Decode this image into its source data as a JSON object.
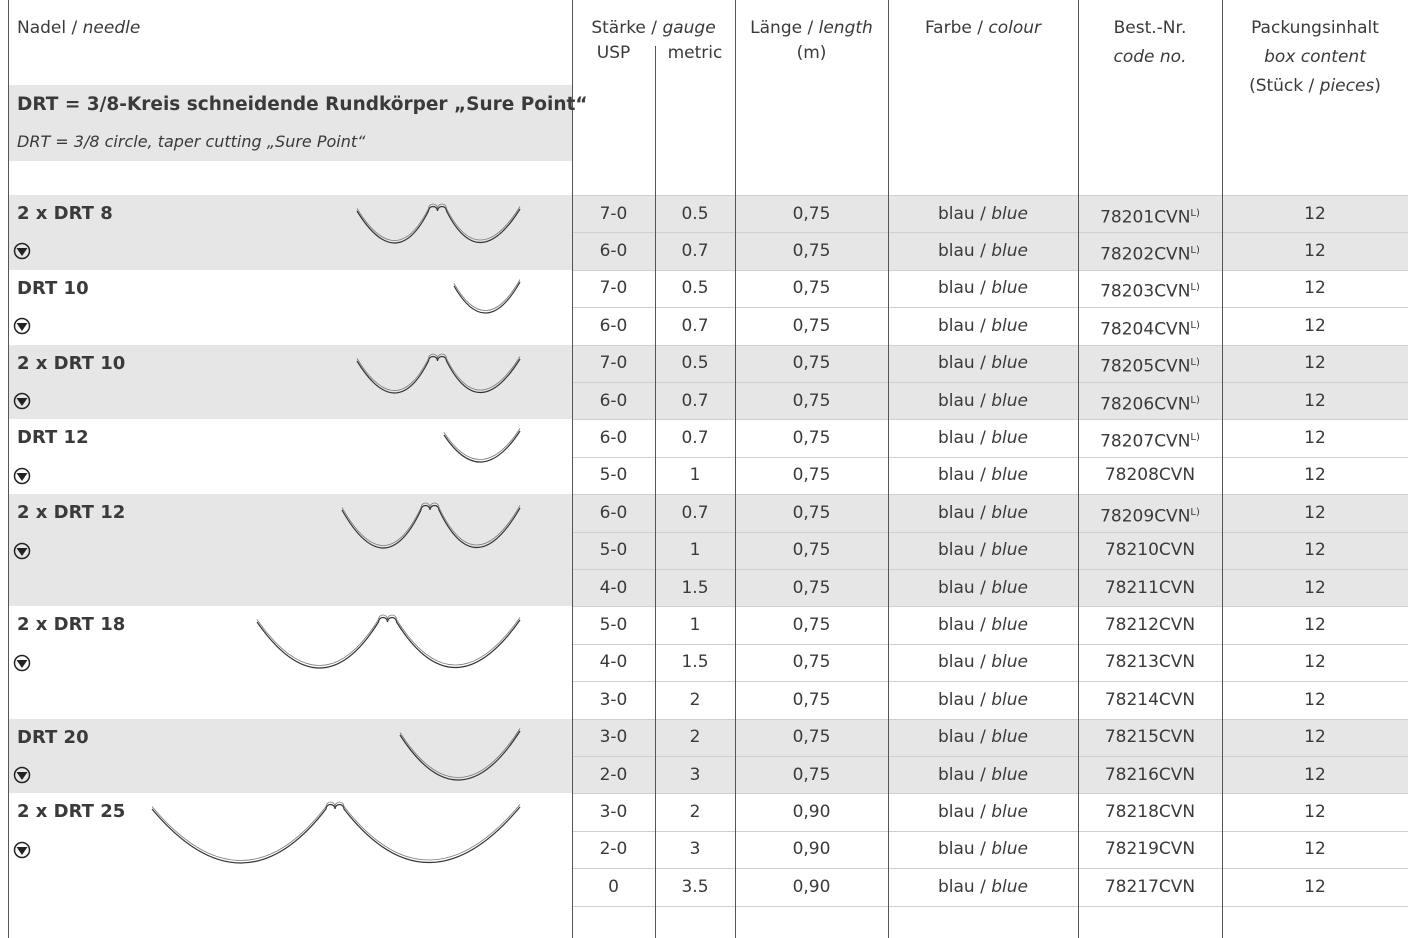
{
  "header": {
    "needle": {
      "de": "Nadel / ",
      "en": "needle"
    },
    "gauge": {
      "de": "Stärke / ",
      "en": "gauge",
      "usp": "USP",
      "metric": "metric"
    },
    "length": {
      "de": "Länge / ",
      "en": "length",
      "unit": "(m)"
    },
    "colour": {
      "de": "Farbe / ",
      "en": "colour"
    },
    "code": {
      "de": "Best.-Nr.",
      "en": "code no."
    },
    "box": {
      "de": "Packungsinhalt",
      "en": "box content",
      "unit_open": "(Stück / ",
      "unit_en": "pieces",
      "unit_close": ")"
    }
  },
  "section": {
    "title": "DRT = 3/8-Kreis schneidende Rundkörper „Sure Point“",
    "subtitle": "DRT = 3/8 circle, taper cutting „Sure Point“"
  },
  "groups": [
    {
      "name": "2 x DRT 8",
      "rows": [
        {
          "usp": "7-0",
          "metric": "0.5",
          "length": "0,75",
          "colour": {
            "de": "blau / ",
            "en": "blue"
          },
          "code": "78201CVN",
          "note": "L)",
          "box": "12"
        },
        {
          "usp": "6-0",
          "metric": "0.7",
          "length": "0,75",
          "colour": {
            "de": "blau / ",
            "en": "blue"
          },
          "code": "78202CVN",
          "note": "L)",
          "box": "12"
        }
      ]
    },
    {
      "name": "DRT 10",
      "rows": [
        {
          "usp": "7-0",
          "metric": "0.5",
          "length": "0,75",
          "colour": {
            "de": "blau / ",
            "en": "blue"
          },
          "code": "78203CVN",
          "note": "L)",
          "box": "12"
        },
        {
          "usp": "6-0",
          "metric": "0.7",
          "length": "0,75",
          "colour": {
            "de": "blau / ",
            "en": "blue"
          },
          "code": "78204CVN",
          "note": "L)",
          "box": "12"
        }
      ]
    },
    {
      "name": "2 x DRT 10",
      "rows": [
        {
          "usp": "7-0",
          "metric": "0.5",
          "length": "0,75",
          "colour": {
            "de": "blau / ",
            "en": "blue"
          },
          "code": "78205CVN",
          "note": "L)",
          "box": "12"
        },
        {
          "usp": "6-0",
          "metric": "0.7",
          "length": "0,75",
          "colour": {
            "de": "blau / ",
            "en": "blue"
          },
          "code": "78206CVN",
          "note": "L)",
          "box": "12"
        }
      ]
    },
    {
      "name": "DRT 12",
      "rows": [
        {
          "usp": "6-0",
          "metric": "0.7",
          "length": "0,75",
          "colour": {
            "de": "blau / ",
            "en": "blue"
          },
          "code": "78207CVN",
          "note": "L)",
          "box": "12"
        },
        {
          "usp": "5-0",
          "metric": "1",
          "length": "0,75",
          "colour": {
            "de": "blau / ",
            "en": "blue"
          },
          "code": "78208CVN",
          "box": "12"
        }
      ]
    },
    {
      "name": "2 x DRT 12",
      "rows": [
        {
          "usp": "6-0",
          "metric": "0.7",
          "length": "0,75",
          "colour": {
            "de": "blau / ",
            "en": "blue"
          },
          "code": "78209CVN",
          "note": "L)",
          "box": "12"
        },
        {
          "usp": "5-0",
          "metric": "1",
          "length": "0,75",
          "colour": {
            "de": "blau / ",
            "en": "blue"
          },
          "code": "78210CVN",
          "box": "12"
        },
        {
          "usp": "4-0",
          "metric": "1.5",
          "length": "0,75",
          "colour": {
            "de": "blau / ",
            "en": "blue"
          },
          "code": "78211CVN",
          "box": "12"
        }
      ]
    },
    {
      "name": "2 x DRT 18",
      "rows": [
        {
          "usp": "5-0",
          "metric": "1",
          "length": "0,75",
          "colour": {
            "de": "blau / ",
            "en": "blue"
          },
          "code": "78212CVN",
          "box": "12"
        },
        {
          "usp": "4-0",
          "metric": "1.5",
          "length": "0,75",
          "colour": {
            "de": "blau / ",
            "en": "blue"
          },
          "code": "78213CVN",
          "box": "12"
        },
        {
          "usp": "3-0",
          "metric": "2",
          "length": "0,75",
          "colour": {
            "de": "blau / ",
            "en": "blue"
          },
          "code": "78214CVN",
          "box": "12"
        }
      ]
    },
    {
      "name": "DRT 20",
      "rows": [
        {
          "usp": "3-0",
          "metric": "2",
          "length": "0,75",
          "colour": {
            "de": "blau / ",
            "en": "blue"
          },
          "code": "78215CVN",
          "box": "12"
        },
        {
          "usp": "2-0",
          "metric": "3",
          "length": "0,75",
          "colour": {
            "de": "blau / ",
            "en": "blue"
          },
          "code": "78216CVN",
          "box": "12"
        }
      ]
    },
    {
      "name": "2 x DRT 25",
      "rows": [
        {
          "usp": "3-0",
          "metric": "2",
          "length": "0,90",
          "colour": {
            "de": "blau / ",
            "en": "blue"
          },
          "code": "78218CVN",
          "box": "12"
        },
        {
          "usp": "2-0",
          "metric": "3",
          "length": "0,90",
          "colour": {
            "de": "blau / ",
            "en": "blue"
          },
          "code": "78219CVN",
          "box": "12"
        },
        {
          "usp": "0",
          "metric": "3.5",
          "length": "0,90",
          "colour": {
            "de": "blau / ",
            "en": "blue"
          },
          "code": "78217CVN",
          "box": "12"
        }
      ]
    }
  ]
}
